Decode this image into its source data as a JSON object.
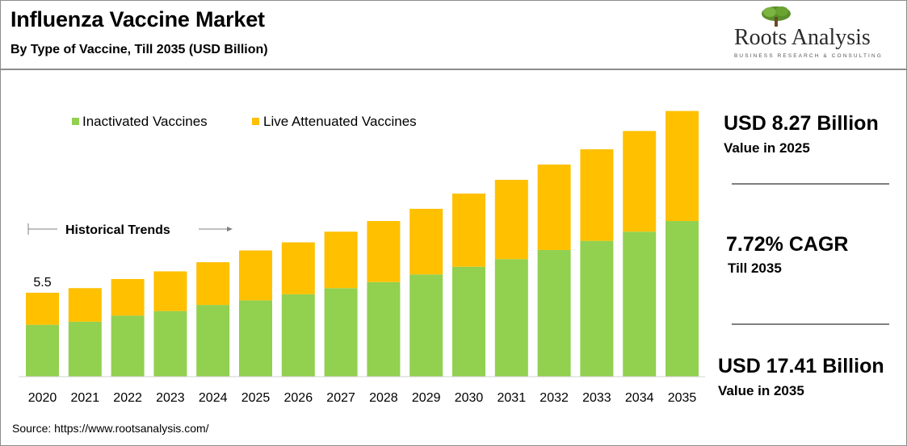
{
  "header": {
    "title": "Influenza Vaccine Market",
    "subtitle": "By Type of Vaccine, Till 2035 (USD Billion)"
  },
  "logo": {
    "name": "Roots Analysis",
    "tagline": "BUSINESS RESEARCH & CONSULTING"
  },
  "chart_data": {
    "type": "bar",
    "stacked": true,
    "categories": [
      "2020",
      "2021",
      "2022",
      "2023",
      "2024",
      "2025",
      "2026",
      "2027",
      "2028",
      "2029",
      "2030",
      "2031",
      "2032",
      "2033",
      "2034",
      "2035"
    ],
    "series": [
      {
        "name": "Inactivated Vaccines",
        "color": "#92d050",
        "values": [
          3.4,
          3.6,
          4.0,
          4.3,
          4.7,
          5.0,
          5.4,
          5.8,
          6.2,
          6.7,
          7.2,
          7.7,
          8.3,
          8.9,
          9.5,
          10.2
        ]
      },
      {
        "name": "Live Attenuated Vaccines",
        "color": "#ffc000",
        "values": [
          2.1,
          2.2,
          2.4,
          2.6,
          2.8,
          3.27,
          3.4,
          3.7,
          4.0,
          4.3,
          4.8,
          5.2,
          5.6,
          6.0,
          6.6,
          7.21
        ]
      }
    ],
    "data_labels": [
      {
        "category": "2020",
        "text": "5.5"
      }
    ],
    "ylim": [
      0,
      18.5
    ],
    "grid": false,
    "legend": "top-left",
    "annotation": "Historical Trends",
    "xlabel": "",
    "ylabel": ""
  },
  "highlights": [
    {
      "value": "USD 8.27 Billion",
      "label": "Value in 2025"
    },
    {
      "value": "7.72% CAGR",
      "label": "Till 2035"
    },
    {
      "value": "USD 17.41 Billion",
      "label": "Value in 2035"
    }
  ],
  "source": "Source: https://www.rootsanalysis.com/"
}
